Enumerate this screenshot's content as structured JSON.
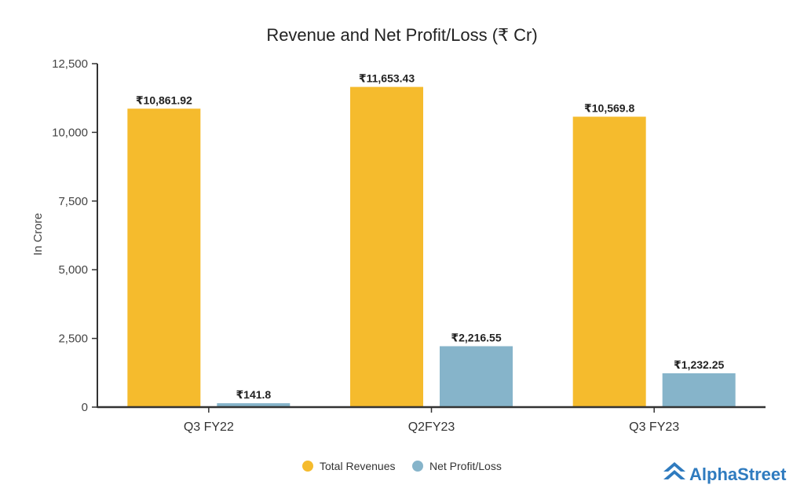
{
  "chart_data": {
    "type": "bar",
    "title": "Revenue and Net Profit/Loss (₹ Cr)",
    "ylabel": "In Crore",
    "xlabel": "",
    "ylim": [
      0,
      12500
    ],
    "yticks": [
      0,
      2500,
      5000,
      7500,
      10000,
      12500
    ],
    "ytick_labels": [
      "0",
      "2,500",
      "5,000",
      "7,500",
      "10,000",
      "12,500"
    ],
    "categories": [
      "Q3 FY22",
      "Q2FY23",
      "Q3 FY23"
    ],
    "series": [
      {
        "name": "Total Revenues",
        "color": "#f5bb2d",
        "values": [
          10861.92,
          11653.43,
          10569.8
        ],
        "labels": [
          "₹10,861.92",
          "₹11,653.43",
          "₹10,569.8"
        ]
      },
      {
        "name": "Net Profit/Loss",
        "color": "#86b4ca",
        "values": [
          141.8,
          2216.55,
          1232.25
        ],
        "labels": [
          "₹141.8",
          "₹2,216.55",
          "₹1,232.25"
        ]
      }
    ],
    "legend_position": "bottom-center",
    "grid": false
  },
  "brand": {
    "name": "AlphaStreet",
    "color": "#2f7bbf",
    "icon": "alphastreet-logo-icon"
  }
}
